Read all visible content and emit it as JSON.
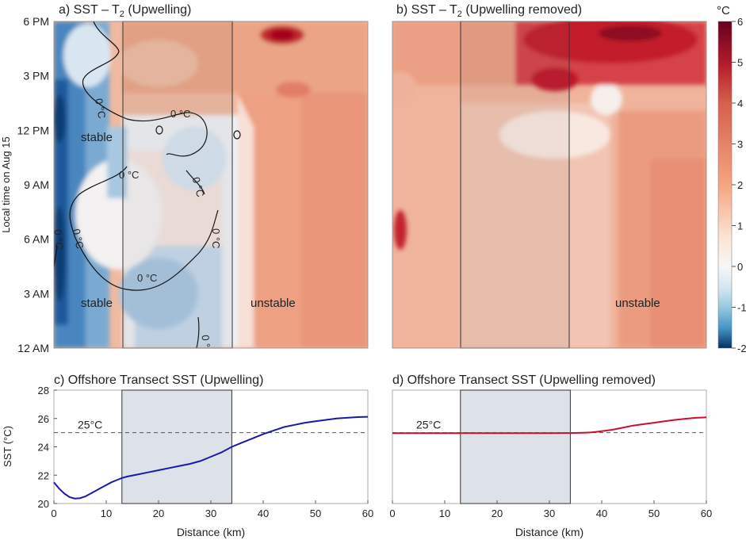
{
  "figure": {
    "colorbar": {
      "unit": "°C",
      "ticks": [
        "6",
        "5",
        "4",
        "3",
        "2",
        "1",
        "0",
        "-1",
        "-2"
      ],
      "min": -2,
      "max": 6,
      "colors": {
        "neg": "#1f5aa0",
        "zero": "#f7f7f7",
        "pos": "#b2182b",
        "low": "#08306b",
        "high": "#67001f"
      }
    },
    "y_label_heatmap": "Local time on Aug 15"
  },
  "chart_data": [
    {
      "type": "heatmap",
      "id": "a",
      "title": "a) SST – T",
      "title_sub": "2",
      "title_tail": " (Upwelling)",
      "ylabel": "Local time on Aug 15",
      "yticks": [
        "6 PM",
        "3 PM",
        "12 PM",
        "9 AM",
        "6 AM",
        "3 AM",
        "12 AM"
      ],
      "xlim": [
        0,
        60
      ],
      "highlight_box_km": [
        13,
        34
      ],
      "contour_labels": [
        "0 °C",
        "0 °C",
        "0 °C",
        "0 °C",
        "0 °C",
        "0 °C",
        "0 °C",
        "0 °C",
        "0 °C"
      ],
      "annotations": [
        "stable",
        "stable",
        "unstable"
      ]
    },
    {
      "type": "heatmap",
      "id": "b",
      "title": "b) SST – T",
      "title_sub": "2",
      "title_tail": " (Upwelling removed)",
      "xlim": [
        0,
        60
      ],
      "highlight_box_km": [
        13,
        34
      ],
      "annotations": [
        "unstable"
      ]
    },
    {
      "type": "line",
      "id": "c",
      "title": "c) Offshore Transect SST (Upwelling)",
      "xlabel": "Distance (km)",
      "ylabel": "SST (°C)",
      "xlim": [
        0,
        60
      ],
      "ylim": [
        20,
        28
      ],
      "xticks": [
        "0",
        "10",
        "20",
        "30",
        "40",
        "50",
        "60"
      ],
      "yticks": [
        "20",
        "22",
        "24",
        "26",
        "28"
      ],
      "reference": {
        "value": 25,
        "label": "25°C"
      },
      "shaded_km": [
        13,
        34
      ],
      "series": [
        {
          "name": "SST",
          "color": "#1a1aaa",
          "x": [
            0,
            1,
            2,
            3,
            4,
            5,
            6,
            7,
            8,
            9,
            10,
            11,
            12,
            13,
            14,
            16,
            18,
            20,
            22,
            24,
            26,
            28,
            30,
            32,
            34,
            36,
            38,
            40,
            42,
            44,
            46,
            48,
            50,
            52,
            54,
            56,
            58,
            60
          ],
          "y": [
            21.5,
            21.05,
            20.7,
            20.45,
            20.35,
            20.38,
            20.5,
            20.7,
            20.9,
            21.1,
            21.3,
            21.5,
            21.65,
            21.8,
            21.9,
            22.05,
            22.2,
            22.35,
            22.5,
            22.65,
            22.8,
            23.0,
            23.3,
            23.6,
            24.0,
            24.3,
            24.6,
            24.9,
            25.15,
            25.4,
            25.55,
            25.7,
            25.8,
            25.9,
            26.0,
            26.05,
            26.1,
            26.12
          ]
        }
      ]
    },
    {
      "type": "line",
      "id": "d",
      "title": "d) Offshore Transect SST (Upwelling removed)",
      "xlabel": "Distance (km)",
      "xlim": [
        0,
        60
      ],
      "ylim": [
        20,
        28
      ],
      "xticks": [
        "0",
        "10",
        "20",
        "30",
        "40",
        "50",
        "60"
      ],
      "reference": {
        "value": 25,
        "label": "25°C"
      },
      "shaded_km": [
        13,
        34
      ],
      "series": [
        {
          "name": "SST",
          "color": "#c8102e",
          "x": [
            0,
            5,
            10,
            15,
            20,
            25,
            30,
            35,
            37,
            38,
            39,
            40,
            42,
            44,
            46,
            48,
            50,
            52,
            54,
            56,
            58,
            60
          ],
          "y": [
            24.97,
            24.97,
            24.97,
            24.97,
            24.97,
            24.97,
            24.97,
            24.98,
            25.0,
            25.02,
            25.06,
            25.1,
            25.2,
            25.35,
            25.5,
            25.6,
            25.7,
            25.8,
            25.9,
            25.98,
            26.05,
            26.08
          ]
        }
      ]
    }
  ]
}
